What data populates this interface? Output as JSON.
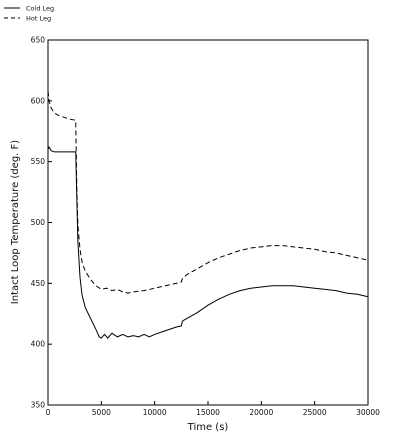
{
  "chart_data": {
    "type": "line",
    "title": "",
    "xlabel": "Time  (s)",
    "ylabel": "Intact Loop Temperature  (deg. F)",
    "xlim": [
      0,
      30000
    ],
    "ylim": [
      350,
      650
    ],
    "xticks": [
      0,
      5000,
      10000,
      15000,
      20000,
      25000,
      30000
    ],
    "yticks": [
      350,
      400,
      450,
      500,
      550,
      600,
      650
    ],
    "grid": false,
    "legend_placement": "above plot, top-left",
    "series": [
      {
        "name": "Cold Leg",
        "style": "solid",
        "color": "#000000",
        "x": [
          0,
          100,
          300,
          600,
          1000,
          2000,
          2600,
          2700,
          2800,
          3000,
          3200,
          3500,
          4000,
          4500,
          4800,
          5000,
          5300,
          5600,
          6000,
          6500,
          7000,
          7500,
          8000,
          8500,
          9000,
          9500,
          10000,
          11000,
          12000,
          12500,
          12600,
          13000,
          14000,
          15000,
          16000,
          17000,
          18000,
          19000,
          20000,
          21000,
          22000,
          23000,
          24000,
          25000,
          26000,
          27000,
          28000,
          29000,
          30000
        ],
        "y": [
          560,
          562,
          559,
          558,
          558,
          558,
          558,
          520,
          485,
          455,
          440,
          430,
          421,
          412,
          406,
          405,
          408,
          405,
          409,
          406,
          408,
          406,
          407,
          406,
          408,
          406,
          408,
          411,
          414,
          415,
          419,
          421,
          426,
          432,
          437,
          441,
          444,
          446,
          447,
          448,
          448,
          448,
          447,
          446,
          445,
          444,
          442,
          441,
          439
        ]
      },
      {
        "name": "Hot Leg",
        "style": "dashed",
        "color": "#000000",
        "x": [
          0,
          100,
          300,
          600,
          1000,
          2000,
          2600,
          2700,
          2800,
          3000,
          3200,
          3500,
          4000,
          4500,
          5000,
          5500,
          6000,
          6500,
          7000,
          7500,
          8000,
          9000,
          10000,
          11000,
          12000,
          12500,
          12600,
          13000,
          14000,
          15000,
          16000,
          17000,
          18000,
          19000,
          20000,
          21000,
          22000,
          23000,
          24000,
          25000,
          26000,
          27000,
          28000,
          29000,
          30000
        ],
        "y": [
          608,
          600,
          594,
          590,
          588,
          585,
          584,
          528,
          498,
          478,
          467,
          460,
          453,
          448,
          445,
          446,
          444,
          445,
          443,
          442,
          443,
          444,
          446,
          448,
          450,
          451,
          454,
          457,
          462,
          467,
          471,
          474,
          477,
          479,
          480,
          481,
          481,
          480,
          479,
          478,
          476,
          475,
          473,
          471,
          469
        ]
      }
    ]
  }
}
